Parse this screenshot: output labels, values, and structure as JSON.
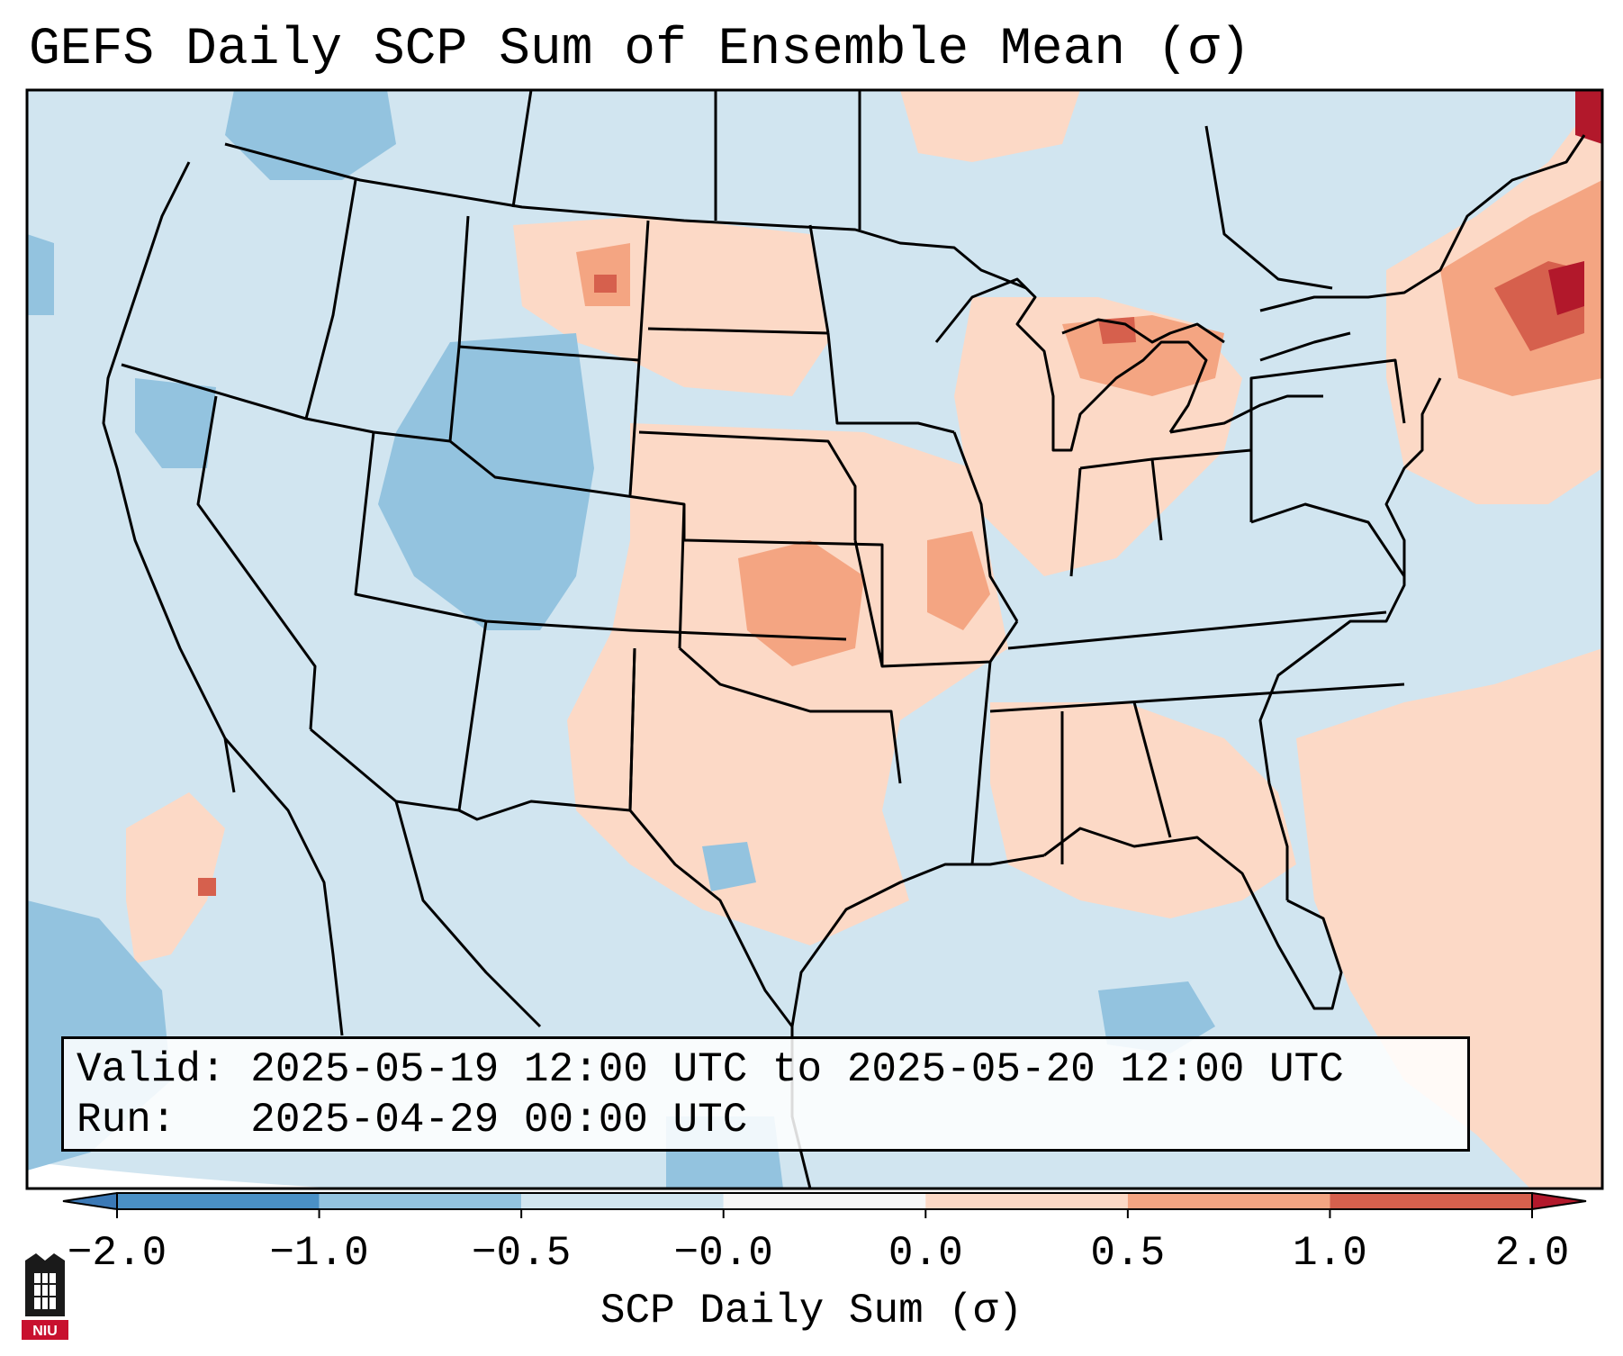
{
  "title": "GEFS Daily SCP Sum of Ensemble Mean (σ)",
  "info": {
    "valid_line": "Valid: 2025-05-19 12:00 UTC to 2025-05-20 12:00 UTC",
    "run_line": "Run:   2025-04-29 00:00 UTC"
  },
  "colorbar": {
    "label": "SCP Daily Sum (σ)",
    "ticks": [
      "−2.0",
      "−1.0",
      "−0.5",
      "−0.0",
      "0.0",
      "0.5",
      "1.0",
      "2.0"
    ],
    "colors": {
      "extend_low": "#3b79b6",
      "bin_m2_m1": "#4a90c6",
      "bin_m1_m05": "#93c3df",
      "bin_m05_0": "#d1e5f0",
      "bin_0_0": "#f7f7f7",
      "bin_0_05": "#fcd9c6",
      "bin_05_1": "#f4a582",
      "bin_1_2": "#d6604d",
      "extend_high": "#b2182b"
    }
  },
  "map": {
    "background_color": "#d1e5f0",
    "anomaly_regions": [
      {
        "name": "northern-plains-positive",
        "color": "#fcd9c6"
      },
      {
        "name": "central-plains-positive",
        "color": "#fcd9c6"
      },
      {
        "name": "southeast-positive",
        "color": "#fcd9c6"
      },
      {
        "name": "northeast-strong-positive",
        "color": "#d6604d"
      },
      {
        "name": "atlantic-positive",
        "color": "#fcd9c6"
      },
      {
        "name": "pacific-positive",
        "color": "#fcd9c6"
      },
      {
        "name": "rockies-negative",
        "color": "#93c3df"
      },
      {
        "name": "northwest-negative",
        "color": "#93c3df"
      }
    ]
  },
  "logo": {
    "text": "NIU",
    "color": "#c8102e"
  }
}
